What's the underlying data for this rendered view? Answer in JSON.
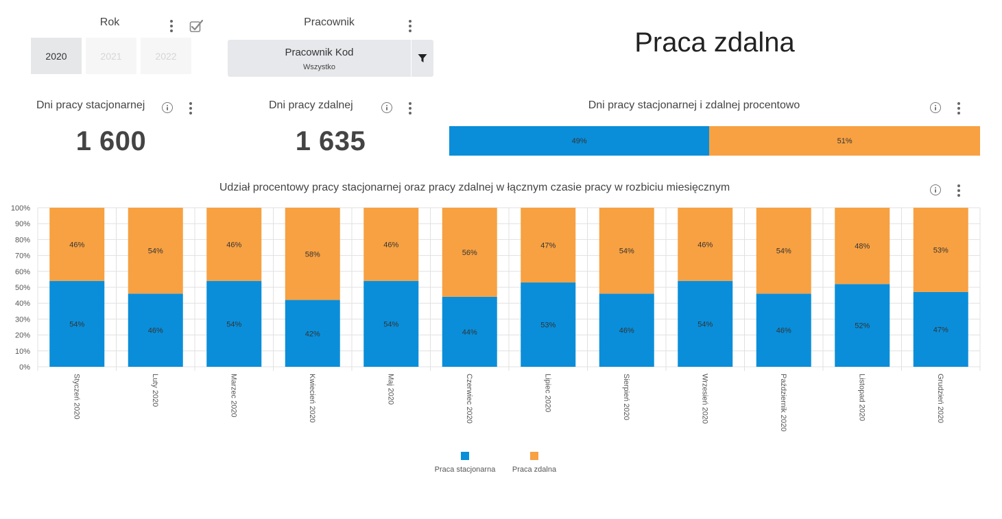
{
  "filters": {
    "year": {
      "title": "Rok",
      "options": [
        "2020",
        "2021",
        "2022"
      ],
      "selected": "2020"
    },
    "employee": {
      "title": "Pracownik",
      "field_label": "Pracownik Kod",
      "value": "Wszystko"
    }
  },
  "page_title": "Praca zdalna",
  "kpis": {
    "office": {
      "title": "Dni pracy stacjonarnej",
      "value": "1 600"
    },
    "remote": {
      "title": "Dni pracy zdalnej",
      "value": "1 635"
    }
  },
  "split": {
    "title": "Dni pracy stacjonarnej i zdalnej procentowo",
    "office_pct": 49,
    "remote_pct": 51,
    "office_label": "49%",
    "remote_label": "51%"
  },
  "colors": {
    "office": "#0a8ed9",
    "remote": "#f7a142",
    "grid": "#e0e0e0",
    "kpi_text": "#444444"
  },
  "icons": [
    "kebab-menu-icon",
    "checkbox-select-icon",
    "filter-funnel-icon",
    "info-icon"
  ],
  "chart_data": {
    "type": "bar",
    "stacked": true,
    "title": "Udział procentowy pracy stacjonarnej oraz pracy zdalnej w łącznym czasie pracy w rozbiciu miesięcznym",
    "categories": [
      "Styczeń 2020",
      "Luty 2020",
      "Marzec 2020",
      "Kwiecień 2020",
      "Maj 2020",
      "Czerwiec 2020",
      "Lipiec 2020",
      "Sierpień 2020",
      "Wrzesień 2020",
      "Październik 2020",
      "Listopad 2020",
      "Grudzień 2020"
    ],
    "series": [
      {
        "name": "Praca stacjonarna",
        "values": [
          54,
          46,
          54,
          42,
          54,
          44,
          53,
          46,
          54,
          46,
          52,
          47
        ]
      },
      {
        "name": "Praca zdalna",
        "values": [
          46,
          54,
          46,
          58,
          46,
          56,
          47,
          54,
          46,
          54,
          48,
          53
        ]
      }
    ],
    "ylim": [
      0,
      100
    ],
    "yticks": [
      "0%",
      "10%",
      "20%",
      "30%",
      "40%",
      "50%",
      "60%",
      "70%",
      "80%",
      "90%",
      "100%"
    ],
    "grid": true,
    "legend_position": "bottom-center"
  }
}
